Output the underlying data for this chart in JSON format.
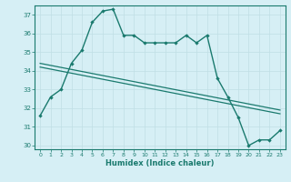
{
  "xlabel": "Humidex (Indice chaleur)",
  "bg_color": "#d6eff5",
  "grid_color": "#c0dee5",
  "line_color": "#1a7a6e",
  "xlim": [
    -0.5,
    23.5
  ],
  "ylim": [
    29.8,
    37.5
  ],
  "xticks": [
    0,
    1,
    2,
    3,
    4,
    5,
    6,
    7,
    8,
    9,
    10,
    11,
    12,
    13,
    14,
    15,
    16,
    17,
    18,
    19,
    20,
    21,
    22,
    23
  ],
  "yticks": [
    30,
    31,
    32,
    33,
    34,
    35,
    36,
    37
  ],
  "line1_x": [
    0,
    1,
    2,
    3,
    4,
    5,
    6,
    7,
    8,
    9,
    10,
    11,
    12,
    13,
    14,
    15,
    16,
    17,
    18,
    19,
    20,
    21,
    22,
    23
  ],
  "line1_y": [
    31.6,
    32.6,
    33.0,
    34.4,
    35.1,
    36.6,
    37.2,
    37.3,
    35.9,
    35.9,
    35.5,
    35.5,
    35.5,
    35.5,
    35.9,
    35.5,
    35.9,
    33.6,
    32.6,
    31.5,
    30.0,
    30.3,
    30.3,
    30.8
  ],
  "line2_x": [
    0,
    23
  ],
  "line2_y": [
    34.4,
    31.9
  ],
  "line3_x": [
    0,
    23
  ],
  "line3_y": [
    34.2,
    31.7
  ]
}
